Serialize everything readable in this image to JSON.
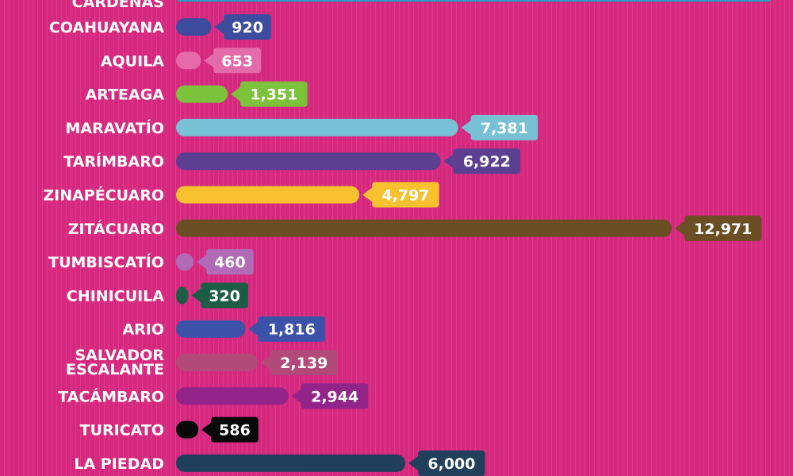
{
  "chart_data": {
    "type": "bar",
    "orientation": "horizontal",
    "title": "",
    "xlabel": "",
    "ylabel": "",
    "xlim": [
      0,
      14000
    ],
    "grid": false,
    "legend": "none",
    "background": "#d6287e",
    "partial_top_bar": {
      "label": "CÁRDENAS",
      "color": "#1fa4c4"
    },
    "bars": [
      {
        "category": "COAHUAYANA",
        "value": 920,
        "label": "920",
        "color": "#3d4c9e"
      },
      {
        "category": "AQUILA",
        "value": 653,
        "label": "653",
        "color": "#e46aa9"
      },
      {
        "category": "ARTEAGA",
        "value": 1351,
        "label": "1,351",
        "color": "#7cc23a"
      },
      {
        "category": "MARAVATÍO",
        "value": 7381,
        "label": "7,381",
        "color": "#78c0d4"
      },
      {
        "category": "TARÍMBARO",
        "value": 6922,
        "label": "6,922",
        "color": "#5c3f91"
      },
      {
        "category": "ZINAPÉCUARO",
        "value": 4797,
        "label": "4,797",
        "color": "#f7c12f"
      },
      {
        "category": "ZITÁCUARO",
        "value": 12971,
        "label": "12,971",
        "color": "#6b4e24"
      },
      {
        "category": "TUMBISCATÍO",
        "value": 460,
        "label": "460",
        "color": "#b06ab6"
      },
      {
        "category": "CHINICUILA",
        "value": 320,
        "label": "320",
        "color": "#1c5e45"
      },
      {
        "category": "ARIO",
        "value": 1816,
        "label": "1,816",
        "color": "#3c51a8"
      },
      {
        "category": "SALVADOR ESCALANTE",
        "value": 2139,
        "label": "2,139",
        "color": "#b24a79"
      },
      {
        "category": "TACÁMBARO",
        "value": 2944,
        "label": "2,944",
        "color": "#93248a"
      },
      {
        "category": "TURICATO",
        "value": 586,
        "label": "586",
        "color": "#080808"
      },
      {
        "category": "LA PIEDAD",
        "value": 6000,
        "label": "6,000",
        "color": "#203f5a"
      }
    ]
  }
}
